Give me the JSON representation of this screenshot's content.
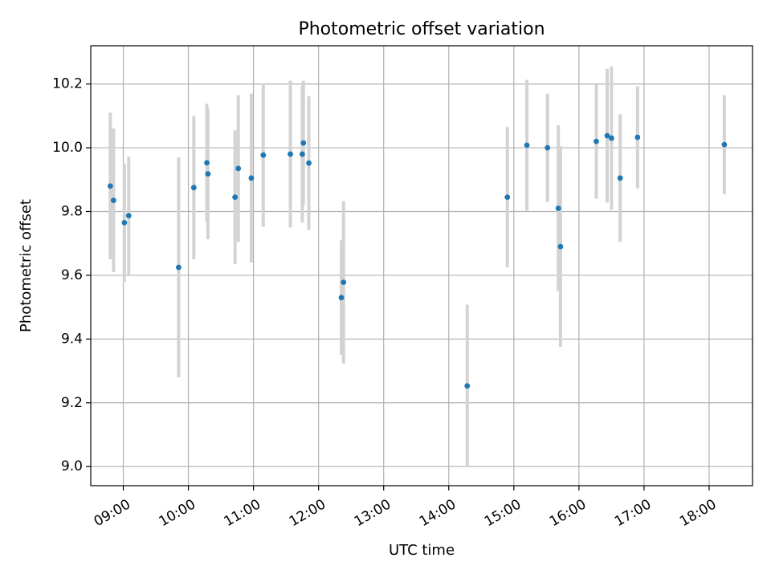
{
  "chart_data": {
    "type": "scatter",
    "title": "Photometric offset variation",
    "xlabel": "UTC time",
    "ylabel": "Photometric offset",
    "x_type": "time",
    "xlim": [
      "08:30",
      "18:40"
    ],
    "ylim": [
      8.94,
      10.32
    ],
    "x_ticks": [
      "09:00",
      "10:00",
      "11:00",
      "12:00",
      "13:00",
      "14:00",
      "15:00",
      "16:00",
      "17:00",
      "18:00"
    ],
    "y_ticks": [
      "9.0",
      "9.2",
      "9.4",
      "9.6",
      "9.8",
      "10.0",
      "10.2"
    ],
    "grid": true,
    "marker_color": "#1f77b4",
    "errorbar_color": "#d3d3d3",
    "points": [
      {
        "time": "08:48",
        "y": 9.88,
        "err": 0.23
      },
      {
        "time": "08:51",
        "y": 9.835,
        "err": 0.225
      },
      {
        "time": "09:01",
        "y": 9.765,
        "err": 0.185
      },
      {
        "time": "09:05",
        "y": 9.787,
        "err": 0.185
      },
      {
        "time": "09:51",
        "y": 9.625,
        "err": 0.345
      },
      {
        "time": "10:05",
        "y": 9.875,
        "err": 0.225
      },
      {
        "time": "10:17",
        "y": 9.953,
        "err": 0.185
      },
      {
        "time": "10:18",
        "y": 9.918,
        "err": 0.205
      },
      {
        "time": "10:43",
        "y": 9.845,
        "err": 0.21
      },
      {
        "time": "10:46",
        "y": 9.935,
        "err": 0.23
      },
      {
        "time": "10:58",
        "y": 9.905,
        "err": 0.265
      },
      {
        "time": "11:09",
        "y": 9.977,
        "err": 0.225
      },
      {
        "time": "11:34",
        "y": 9.98,
        "err": 0.23
      },
      {
        "time": "11:45",
        "y": 9.98,
        "err": 0.215
      },
      {
        "time": "11:46",
        "y": 10.015,
        "err": 0.195
      },
      {
        "time": "11:51",
        "y": 9.952,
        "err": 0.21
      },
      {
        "time": "12:21",
        "y": 9.53,
        "err": 0.18
      },
      {
        "time": "12:23",
        "y": 9.578,
        "err": 0.255
      },
      {
        "time": "14:17",
        "y": 9.253,
        "err": 0.255
      },
      {
        "time": "14:54",
        "y": 9.845,
        "err": 0.22
      },
      {
        "time": "15:12",
        "y": 10.008,
        "err": 0.205
      },
      {
        "time": "15:31",
        "y": 10.0,
        "err": 0.17
      },
      {
        "time": "15:41",
        "y": 9.81,
        "err": 0.26
      },
      {
        "time": "15:43",
        "y": 9.69,
        "err": 0.315
      },
      {
        "time": "16:16",
        "y": 10.02,
        "err": 0.18
      },
      {
        "time": "16:26",
        "y": 10.038,
        "err": 0.21
      },
      {
        "time": "16:30",
        "y": 10.03,
        "err": 0.225
      },
      {
        "time": "16:38",
        "y": 9.905,
        "err": 0.2
      },
      {
        "time": "16:54",
        "y": 10.033,
        "err": 0.16
      },
      {
        "time": "18:14",
        "y": 10.01,
        "err": 0.155
      }
    ]
  }
}
